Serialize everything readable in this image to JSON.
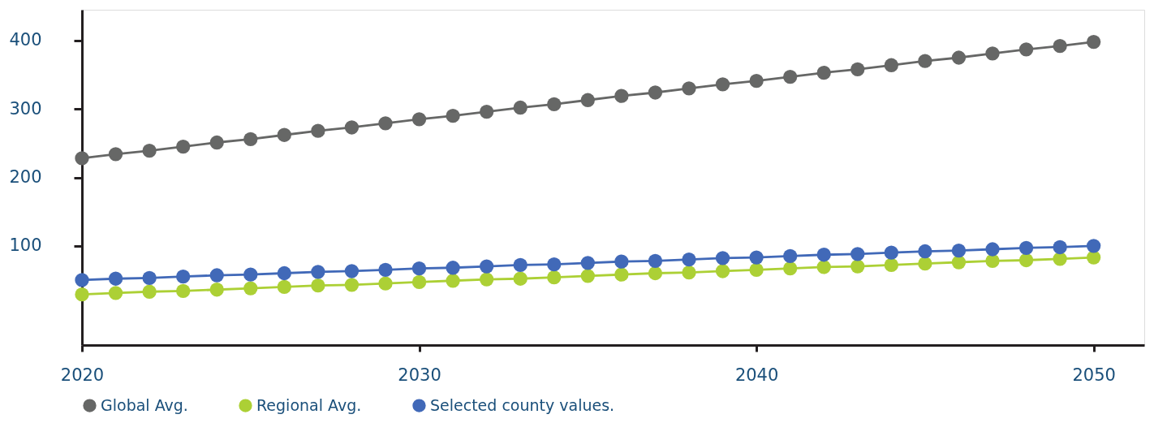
{
  "chart_data": {
    "type": "line",
    "x": [
      2020,
      2021,
      2022,
      2023,
      2024,
      2025,
      2026,
      2027,
      2028,
      2029,
      2030,
      2031,
      2032,
      2033,
      2034,
      2035,
      2036,
      2037,
      2038,
      2039,
      2040,
      2041,
      2042,
      2043,
      2044,
      2045,
      2046,
      2047,
      2048,
      2049,
      2050
    ],
    "series": [
      {
        "name": "Global Avg.",
        "color": "#666766",
        "values": [
          228,
          234,
          239,
          245,
          251,
          256,
          262,
          268,
          273,
          279,
          285,
          290,
          296,
          302,
          307,
          313,
          319,
          324,
          330,
          336,
          341,
          347,
          353,
          358,
          364,
          370,
          375,
          381,
          387,
          392,
          398
        ]
      },
      {
        "name": "Regional Avg.",
        "color": "#acd035",
        "values": [
          29,
          31,
          33,
          34,
          36,
          38,
          40,
          42,
          43,
          45,
          47,
          49,
          51,
          52,
          54,
          56,
          58,
          60,
          61,
          63,
          65,
          67,
          69,
          70,
          72,
          74,
          76,
          78,
          79,
          81,
          83
        ]
      },
      {
        "name": "Selected county values.",
        "color": "#4169b8",
        "values": [
          50,
          52,
          53,
          55,
          57,
          58,
          60,
          62,
          63,
          65,
          67,
          68,
          70,
          72,
          73,
          75,
          77,
          78,
          80,
          82,
          83,
          85,
          87,
          88,
          90,
          92,
          93,
          95,
          97,
          98,
          100
        ]
      }
    ],
    "xlim": [
      2020,
      2051.5
    ],
    "xticks": [
      2020,
      2030,
      2040,
      2050
    ],
    "ylim": [
      -45,
      445
    ],
    "yticks": [
      100,
      200,
      300,
      400
    ],
    "marker": "circle",
    "line_style": "solid",
    "grid": false,
    "legend": "bottom"
  }
}
